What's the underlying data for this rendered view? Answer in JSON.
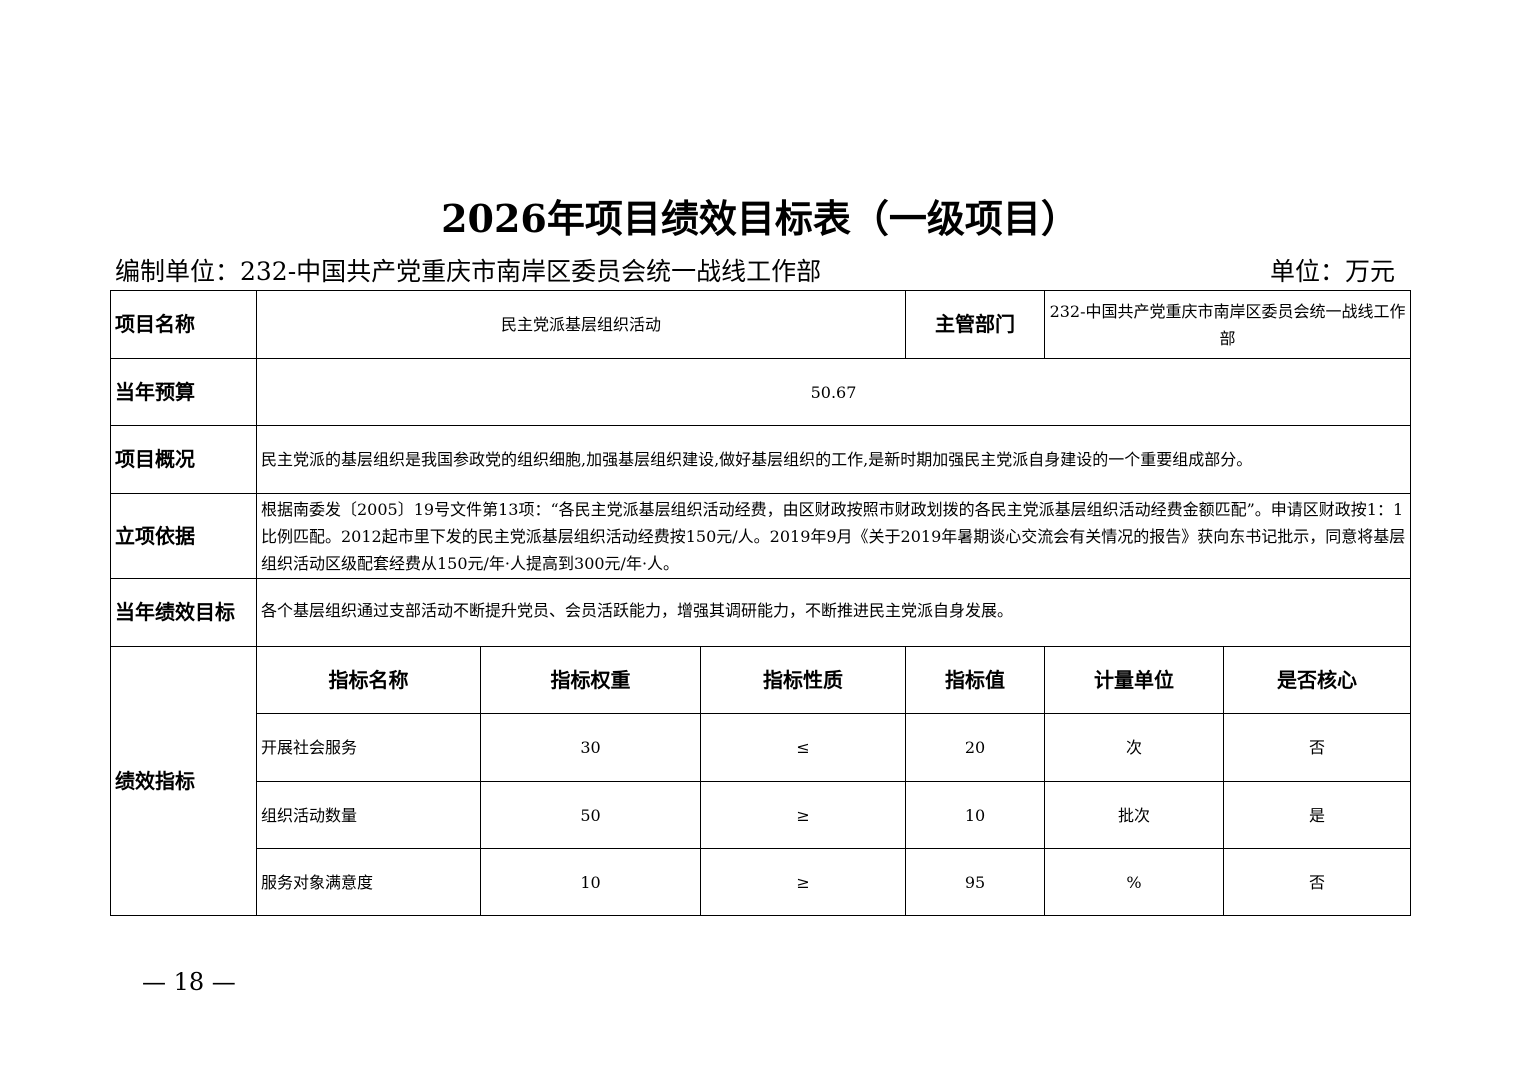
{
  "title": "2026年项目绩效目标表（一级项目）",
  "org_label": "编制单位：232-中国共产党重庆市南岸区委员会统一战线工作部",
  "unit_label": "单位：万元",
  "rows": {
    "project_name_label": "项目名称",
    "project_name": "民主党派基层组织活动",
    "dept_label": "主管部门",
    "dept": "232-中国共产党重庆市南岸区委员会统一战线工作部",
    "budget_label": "当年预算",
    "budget": "50.67",
    "overview_label": "项目概况",
    "overview": "民主党派的基层组织是我国参政党的组织细胞,加强基层组织建设,做好基层组织的工作,是新时期加强民主党派自身建设的一个重要组成部分。",
    "basis_label": "立项依据",
    "basis": "根据南委发〔2005〕19号文件第13项：“各民主党派基层组织活动经费，由区财政按照市财政划拨的各民主党派基层组织活动经费金额匹配”。申请区财政按1：1比例匹配。2012起市里下发的民主党派基层组织活动经费按150元/人。2019年9月《关于2019年暑期谈心交流会有关情况的报告》获向东书记批示，同意将基层组织活动区级配套经费从150元/年·人提高到300元/年·人。",
    "goal_label": "当年绩效目标",
    "goal": "各个基层组织通过支部活动不断提升党员、会员活跃能力，增强其调研能力，不断推进民主党派自身发展。",
    "indicators_label": "绩效指标"
  },
  "indicator_headers": [
    "指标名称",
    "指标权重",
    "指标性质",
    "指标值",
    "计量单位",
    "是否核心"
  ],
  "indicators": [
    [
      "开展社会服务",
      "30",
      "≤",
      "20",
      "次",
      "否"
    ],
    [
      "组织活动数量",
      "50",
      "≥",
      "10",
      "批次",
      "是"
    ],
    [
      "服务对象满意度",
      "10",
      "≥",
      "95",
      "%",
      "否"
    ]
  ],
  "page_number": "— 18 —"
}
